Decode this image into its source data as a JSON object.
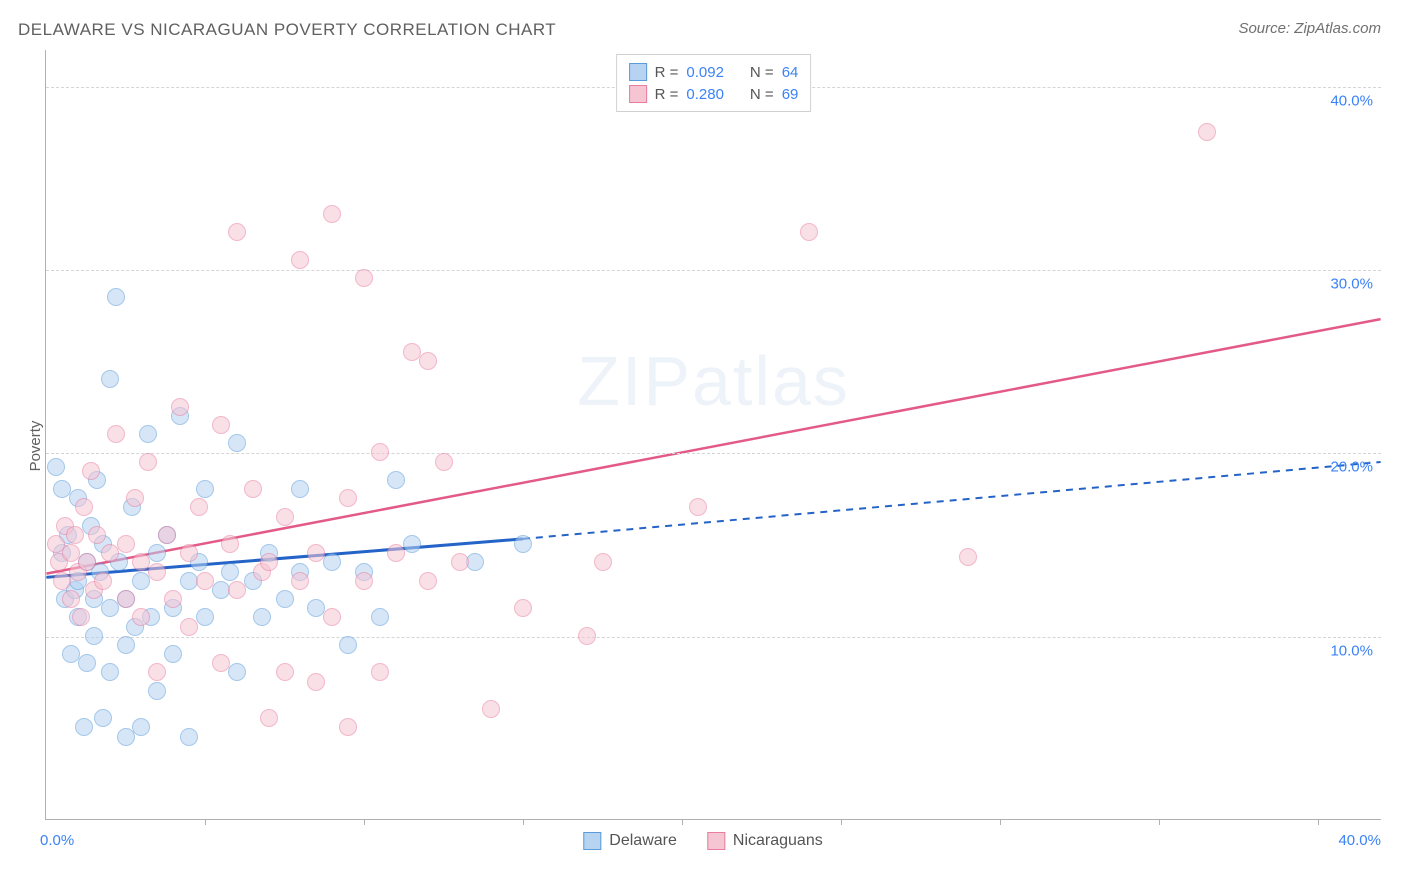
{
  "title": "DELAWARE VS NICARAGUAN POVERTY CORRELATION CHART",
  "source": "Source: ZipAtlas.com",
  "ylabel": "Poverty",
  "watermark_a": "ZIP",
  "watermark_b": "atlas",
  "chart": {
    "type": "scatter-with-regression",
    "xlim": [
      0,
      42
    ],
    "ylim": [
      0,
      42
    ],
    "xticks": [
      5,
      10,
      15,
      20,
      25,
      30,
      35,
      40
    ],
    "yticks": [
      10,
      20,
      30,
      40
    ],
    "ytick_labels": [
      "10.0%",
      "20.0%",
      "30.0%",
      "40.0%"
    ],
    "xlim_labels": {
      "min": "0.0%",
      "max": "40.0%"
    },
    "background_color": "#ffffff",
    "grid_color": "#d5d5d5",
    "axis_color": "#b0b0b0",
    "tick_label_color": "#3b82f6",
    "point_radius": 9,
    "point_opacity": 0.55,
    "point_stroke_width": 1.3
  },
  "series": [
    {
      "name": "Delaware",
      "fill": "#b6d3f2",
      "stroke": "#5a9bd8",
      "line_color": "#2463c7",
      "r_label": "R = ",
      "r_value": "0.092",
      "n_label": "N = ",
      "n_value": "64",
      "regression": {
        "x1": 0,
        "y1": 13.2,
        "x2": 15,
        "y2": 15.3,
        "x3": 42,
        "y3": 19.5
      },
      "solid_extent_x": 15,
      "points": [
        [
          0.3,
          19.2
        ],
        [
          0.5,
          18.0
        ],
        [
          0.5,
          14.5
        ],
        [
          0.6,
          12.0
        ],
        [
          0.7,
          15.5
        ],
        [
          0.8,
          9.0
        ],
        [
          0.9,
          12.5
        ],
        [
          1.0,
          17.5
        ],
        [
          1.0,
          13.0
        ],
        [
          1.0,
          11.0
        ],
        [
          1.2,
          5.0
        ],
        [
          1.3,
          14.0
        ],
        [
          1.3,
          8.5
        ],
        [
          1.4,
          16.0
        ],
        [
          1.5,
          12.0
        ],
        [
          1.5,
          10.0
        ],
        [
          1.6,
          18.5
        ],
        [
          1.7,
          13.5
        ],
        [
          1.8,
          5.5
        ],
        [
          1.8,
          15.0
        ],
        [
          2.0,
          24.0
        ],
        [
          2.0,
          11.5
        ],
        [
          2.0,
          8.0
        ],
        [
          2.2,
          28.5
        ],
        [
          2.3,
          14.0
        ],
        [
          2.5,
          12.0
        ],
        [
          2.5,
          9.5
        ],
        [
          2.5,
          4.5
        ],
        [
          2.7,
          17.0
        ],
        [
          2.8,
          10.5
        ],
        [
          3.0,
          13.0
        ],
        [
          3.0,
          5.0
        ],
        [
          3.2,
          21.0
        ],
        [
          3.3,
          11.0
        ],
        [
          3.5,
          14.5
        ],
        [
          3.5,
          7.0
        ],
        [
          3.8,
          15.5
        ],
        [
          4.0,
          11.5
        ],
        [
          4.0,
          9.0
        ],
        [
          4.2,
          22.0
        ],
        [
          4.5,
          13.0
        ],
        [
          4.5,
          4.5
        ],
        [
          4.8,
          14.0
        ],
        [
          5.0,
          11.0
        ],
        [
          5.0,
          18.0
        ],
        [
          5.5,
          12.5
        ],
        [
          5.8,
          13.5
        ],
        [
          6.0,
          20.5
        ],
        [
          6.0,
          8.0
        ],
        [
          6.5,
          13.0
        ],
        [
          6.8,
          11.0
        ],
        [
          7.0,
          14.5
        ],
        [
          7.5,
          12.0
        ],
        [
          8.0,
          13.5
        ],
        [
          8.0,
          18.0
        ],
        [
          8.5,
          11.5
        ],
        [
          9.0,
          14.0
        ],
        [
          9.5,
          9.5
        ],
        [
          10.0,
          13.5
        ],
        [
          10.5,
          11.0
        ],
        [
          11.0,
          18.5
        ],
        [
          11.5,
          15.0
        ],
        [
          13.5,
          14.0
        ],
        [
          15.0,
          15.0
        ]
      ]
    },
    {
      "name": "Nicaraguans",
      "fill": "#f5c5d3",
      "stroke": "#e87da0",
      "line_color": "#e35a89",
      "r_label": "R = ",
      "r_value": "0.280",
      "n_label": "N = ",
      "n_value": "69",
      "regression": {
        "x1": 0,
        "y1": 13.4,
        "x2": 42,
        "y2": 27.3
      },
      "solid_extent_x": 42,
      "points": [
        [
          0.3,
          15.0
        ],
        [
          0.4,
          14.0
        ],
        [
          0.5,
          13.0
        ],
        [
          0.6,
          16.0
        ],
        [
          0.8,
          14.5
        ],
        [
          0.8,
          12.0
        ],
        [
          0.9,
          15.5
        ],
        [
          1.0,
          13.5
        ],
        [
          1.1,
          11.0
        ],
        [
          1.2,
          17.0
        ],
        [
          1.3,
          14.0
        ],
        [
          1.4,
          19.0
        ],
        [
          1.5,
          12.5
        ],
        [
          1.6,
          15.5
        ],
        [
          1.8,
          13.0
        ],
        [
          2.0,
          14.5
        ],
        [
          2.2,
          21.0
        ],
        [
          2.5,
          15.0
        ],
        [
          2.5,
          12.0
        ],
        [
          2.8,
          17.5
        ],
        [
          3.0,
          14.0
        ],
        [
          3.0,
          11.0
        ],
        [
          3.2,
          19.5
        ],
        [
          3.5,
          13.5
        ],
        [
          3.5,
          8.0
        ],
        [
          3.8,
          15.5
        ],
        [
          4.0,
          12.0
        ],
        [
          4.2,
          22.5
        ],
        [
          4.5,
          14.5
        ],
        [
          4.5,
          10.5
        ],
        [
          4.8,
          17.0
        ],
        [
          5.0,
          13.0
        ],
        [
          5.5,
          21.5
        ],
        [
          5.5,
          8.5
        ],
        [
          5.8,
          15.0
        ],
        [
          6.0,
          12.5
        ],
        [
          6.0,
          32.0
        ],
        [
          6.5,
          18.0
        ],
        [
          6.8,
          13.5
        ],
        [
          7.0,
          14.0
        ],
        [
          7.0,
          5.5
        ],
        [
          7.5,
          16.5
        ],
        [
          7.5,
          8.0
        ],
        [
          8.0,
          13.0
        ],
        [
          8.0,
          30.5
        ],
        [
          8.5,
          14.5
        ],
        [
          8.5,
          7.5
        ],
        [
          9.0,
          33.0
        ],
        [
          9.0,
          11.0
        ],
        [
          9.5,
          17.5
        ],
        [
          9.5,
          5.0
        ],
        [
          10.0,
          29.5
        ],
        [
          10.0,
          13.0
        ],
        [
          10.5,
          20.0
        ],
        [
          10.5,
          8.0
        ],
        [
          11.0,
          14.5
        ],
        [
          11.5,
          25.5
        ],
        [
          12.0,
          13.0
        ],
        [
          12.0,
          25.0
        ],
        [
          12.5,
          19.5
        ],
        [
          13.0,
          14.0
        ],
        [
          14.0,
          6.0
        ],
        [
          15.0,
          11.5
        ],
        [
          17.0,
          10.0
        ],
        [
          17.5,
          14.0
        ],
        [
          20.5,
          17.0
        ],
        [
          24.0,
          32.0
        ],
        [
          29.0,
          14.3
        ],
        [
          36.5,
          37.5
        ]
      ]
    }
  ],
  "legend_bottom": [
    {
      "label": "Delaware",
      "fill": "#b6d3f2",
      "stroke": "#5a9bd8"
    },
    {
      "label": "Nicaraguans",
      "fill": "#f5c5d3",
      "stroke": "#e87da0"
    }
  ]
}
